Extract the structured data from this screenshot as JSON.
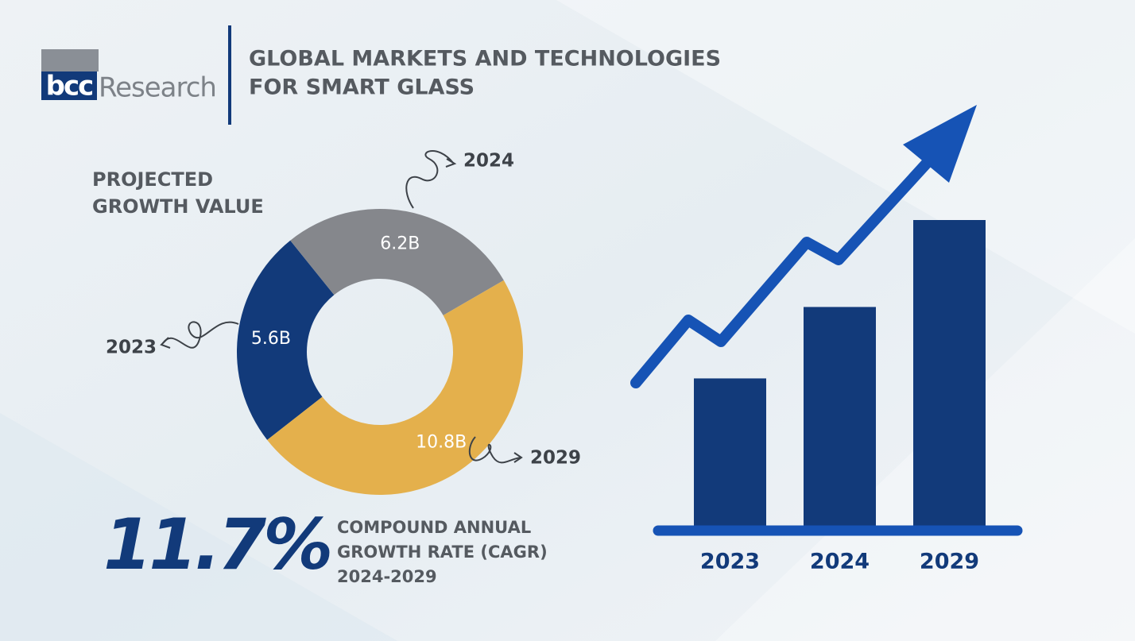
{
  "header": {
    "logo_mark": "bcc",
    "logo_text": "Research",
    "title_lines": [
      "GLOBAL MARKETS AND TECHNOLOGIES",
      "FOR SMART GLASS"
    ]
  },
  "chart_data": [
    {
      "type": "donut",
      "title_lines": [
        "PROJECTED",
        "GROWTH VALUE"
      ],
      "categories": [
        "2023",
        "2024",
        "2029"
      ],
      "values": [
        5.6,
        6.2,
        10.8
      ],
      "value_labels": [
        "5.6B",
        "6.2B",
        "10.8B"
      ],
      "colors": [
        "#123a7a",
        "#85878c",
        "#e4b04c"
      ]
    },
    {
      "type": "bar",
      "categories": [
        "2023",
        "2024",
        "2029"
      ],
      "values": [
        4.9,
        7.2,
        10
      ],
      "ylim": [
        0,
        10
      ],
      "color": "#123a7a",
      "trend_color": "#1653b5"
    }
  ],
  "cagr": {
    "value_label": "11.7%",
    "label_lines": [
      "COMPOUND ANNUAL",
      "GROWTH RATE (CAGR)"
    ],
    "period": "2024-2029"
  }
}
